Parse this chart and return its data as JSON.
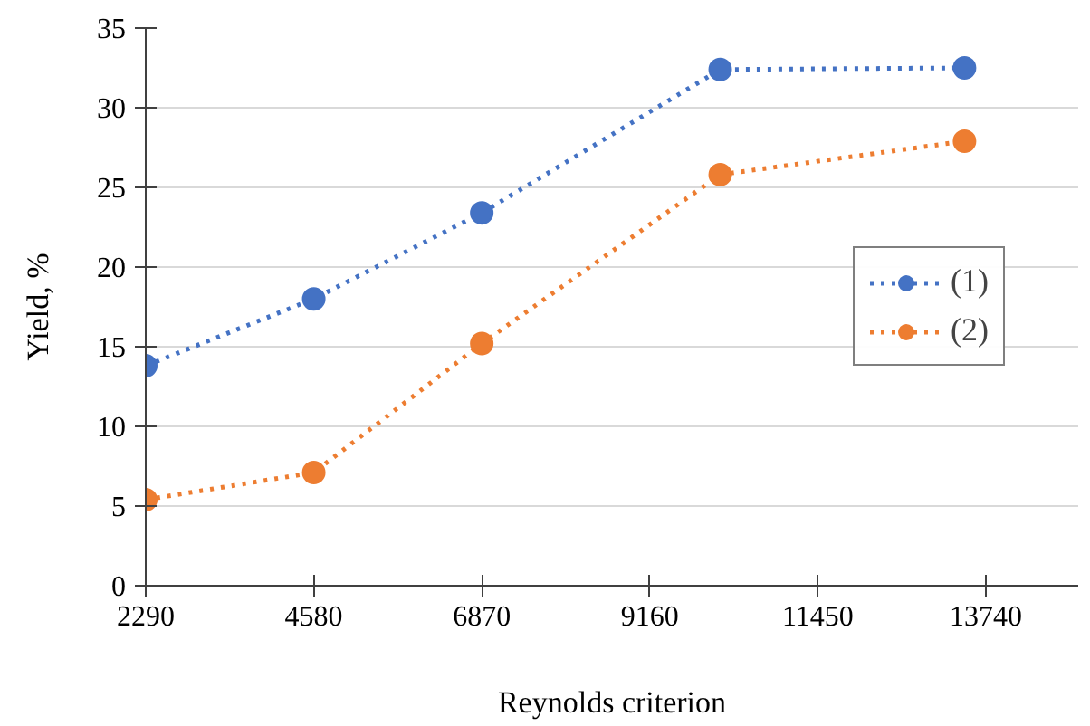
{
  "chart_data": {
    "type": "line",
    "xlabel": "Reynolds criterion",
    "ylabel": "Yield, %",
    "x": [
      2290,
      4580,
      6870,
      10120,
      13450
    ],
    "series": [
      {
        "name": "(1)",
        "color": "#4472c4",
        "values": [
          13.8,
          18.0,
          23.4,
          32.4,
          32.5
        ]
      },
      {
        "name": "(2)",
        "color": "#ed7d31",
        "values": [
          5.4,
          7.1,
          15.2,
          25.8,
          27.9
        ]
      }
    ],
    "xlim": [
      2290,
      15000
    ],
    "xticks": [
      2290,
      4580,
      6870,
      9160,
      11450,
      13740
    ],
    "ylim": [
      0,
      35
    ],
    "yticks": [
      0,
      5,
      10,
      15,
      20,
      25,
      30,
      35
    ],
    "grid": "y",
    "legend": "right",
    "marker": "circle",
    "line_style": "dotted"
  }
}
